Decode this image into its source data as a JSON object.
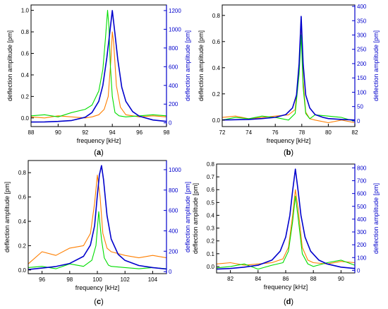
{
  "chart_data": [
    {
      "panel": "(a)",
      "type": "line",
      "xlabel": "frequency [kHz]",
      "ylabel_left": "deflection amplitude [pm]",
      "ylabel_right": "deflection amplitude [pm]",
      "xlim": [
        88,
        98
      ],
      "ylim_left": [
        -0.08,
        1.05
      ],
      "ylim_right": [
        -40,
        1260
      ],
      "xticks": [
        "88",
        "90",
        "92",
        "94",
        "96",
        "98"
      ],
      "yticks_left": [
        "0.0",
        "0.2",
        "0.4",
        "0.6",
        "0.8",
        "1.0"
      ],
      "yticks_right": [
        "0",
        "200",
        "400",
        "600",
        "800",
        "1000",
        "1200"
      ],
      "series": [
        {
          "axis": "left",
          "color": "#ff7f00",
          "x": [
            88,
            89,
            90,
            91,
            92,
            92.5,
            93,
            93.4,
            93.7,
            93.9,
            94.0,
            94.1,
            94.3,
            94.6,
            95,
            96,
            97,
            98
          ],
          "y": [
            0.01,
            0.0,
            0.02,
            0.01,
            0.0,
            0.01,
            0.03,
            0.08,
            0.2,
            0.55,
            0.8,
            0.7,
            0.3,
            0.1,
            0.03,
            0.01,
            0.02,
            0.01
          ]
        },
        {
          "axis": "left",
          "color": "#00dd00",
          "x": [
            88,
            89,
            90,
            91,
            92,
            92.5,
            93,
            93.3,
            93.5,
            93.65,
            93.75,
            93.85,
            94.0,
            94.2,
            94.5,
            95,
            96,
            97,
            98
          ],
          "y": [
            0.02,
            0.03,
            0.01,
            0.05,
            0.08,
            0.12,
            0.25,
            0.45,
            0.75,
            1.0,
            0.85,
            0.5,
            0.2,
            0.05,
            0.02,
            0.01,
            0.02,
            0.03,
            0.02
          ]
        },
        {
          "axis": "right",
          "color": "#0000cc",
          "x": [
            88,
            89,
            90,
            91,
            92,
            92.5,
            93,
            93.3,
            93.6,
            93.8,
            94.0,
            94.2,
            94.4,
            94.7,
            95,
            95.5,
            96,
            97,
            98
          ],
          "y": [
            8,
            10,
            15,
            25,
            60,
            110,
            230,
            400,
            700,
            950,
            1200,
            950,
            680,
            380,
            230,
            120,
            70,
            30,
            15
          ]
        }
      ]
    },
    {
      "panel": "(b)",
      "type": "line",
      "xlabel": "frequency [kHz]",
      "ylabel_left": "deflection amplitude [pm]",
      "ylabel_right": "deflection amplitude [pm]",
      "xlim": [
        72,
        82
      ],
      "ylim_left": [
        -0.05,
        0.88
      ],
      "ylim_right": [
        -20,
        405
      ],
      "xticks": [
        "72",
        "74",
        "76",
        "78",
        "80",
        "82"
      ],
      "yticks_left": [
        "0.0",
        "0.2",
        "0.4",
        "0.6",
        "0.8"
      ],
      "yticks_right": [
        "0",
        "50",
        "100",
        "150",
        "200",
        "250",
        "300",
        "350",
        "400"
      ],
      "series": [
        {
          "axis": "left",
          "color": "#ff7f00",
          "x": [
            72,
            73,
            74,
            75,
            76,
            77,
            77.5,
            77.8,
            77.95,
            78.1,
            78.3,
            78.6,
            79,
            80,
            81,
            82
          ],
          "y": [
            0.02,
            0.03,
            0.01,
            0.02,
            0.03,
            0.04,
            0.08,
            0.4,
            0.75,
            0.3,
            0.06,
            0.01,
            0.0,
            -0.02,
            0.0,
            -0.02
          ]
        },
        {
          "axis": "left",
          "color": "#00dd00",
          "x": [
            72,
            73,
            74,
            75,
            76,
            77,
            77.5,
            77.8,
            77.95,
            78.1,
            78.3,
            78.6,
            79,
            80,
            81,
            82
          ],
          "y": [
            0.0,
            0.02,
            0.01,
            0.03,
            0.02,
            0.0,
            0.05,
            0.35,
            0.65,
            0.25,
            0.05,
            0.01,
            0.04,
            0.03,
            0.02,
            -0.01
          ]
        },
        {
          "axis": "right",
          "color": "#0000cc",
          "x": [
            72,
            73,
            74,
            75,
            76,
            76.8,
            77.3,
            77.6,
            77.8,
            77.95,
            78.1,
            78.3,
            78.6,
            79,
            79.6,
            80,
            81,
            82
          ],
          "y": [
            3,
            4,
            5,
            8,
            12,
            22,
            45,
            90,
            200,
            365,
            200,
            90,
            45,
            22,
            12,
            8,
            5,
            3
          ]
        }
      ]
    },
    {
      "panel": "(c)",
      "type": "line",
      "xlabel": "frequency [kHz]",
      "ylabel_left": "deflection amplitude [pm]",
      "ylabel_right": "deflection amplitude [pm]",
      "xlim": [
        95,
        105
      ],
      "ylim_left": [
        -0.03,
        0.9
      ],
      "ylim_right": [
        -20,
        1090
      ],
      "xticks": [
        "96",
        "98",
        "100",
        "102",
        "104"
      ],
      "yticks_left": [
        "0.0",
        "0.2",
        "0.4",
        "0.6",
        "0.8"
      ],
      "yticks_right": [
        "0",
        "200",
        "400",
        "600",
        "800",
        "1000"
      ],
      "series": [
        {
          "axis": "left",
          "color": "#ff7f00",
          "x": [
            95,
            96,
            97,
            98,
            99,
            99.5,
            99.8,
            100.0,
            100.2,
            100.4,
            100.7,
            101,
            102,
            103,
            104,
            105
          ],
          "y": [
            0.05,
            0.15,
            0.12,
            0.18,
            0.2,
            0.3,
            0.55,
            0.78,
            0.6,
            0.3,
            0.18,
            0.15,
            0.12,
            0.1,
            0.12,
            0.1
          ]
        },
        {
          "axis": "left",
          "color": "#00dd00",
          "x": [
            95,
            96,
            97,
            98,
            99,
            99.6,
            99.9,
            100.1,
            100.3,
            100.5,
            100.8,
            101,
            102,
            103,
            104,
            105
          ],
          "y": [
            0.02,
            0.03,
            0.01,
            0.05,
            0.03,
            0.08,
            0.2,
            0.48,
            0.25,
            0.1,
            0.04,
            0.03,
            0.02,
            0.01,
            0.02,
            0.01
          ]
        },
        {
          "axis": "right",
          "color": "#0000cc",
          "x": [
            95,
            96,
            97,
            98,
            99,
            99.5,
            99.8,
            100.0,
            100.15,
            100.3,
            100.45,
            100.7,
            101,
            101.5,
            102,
            103,
            104,
            105
          ],
          "y": [
            20,
            35,
            50,
            80,
            150,
            260,
            450,
            750,
            950,
            1040,
            900,
            550,
            320,
            170,
            110,
            60,
            40,
            25
          ]
        }
      ]
    },
    {
      "panel": "(d)",
      "type": "line",
      "xlabel": "frequency [kHz]",
      "ylabel_left": "deflection amplitude [pm]",
      "ylabel_right": "deflection amplitude [pm]",
      "xlim": [
        81,
        91
      ],
      "ylim_left": [
        -0.05,
        0.8
      ],
      "ylim_right": [
        -20,
        830
      ],
      "xticks": [
        "82",
        "84",
        "86",
        "88",
        "90"
      ],
      "yticks_left": [
        "0.0",
        "0.1",
        "0.2",
        "0.3",
        "0.4",
        "0.5",
        "0.6",
        "0.7",
        "0.8"
      ],
      "yticks_right": [
        "0",
        "100",
        "200",
        "300",
        "400",
        "500",
        "600",
        "700",
        "800"
      ],
      "series": [
        {
          "axis": "left",
          "color": "#ff7f00",
          "x": [
            81,
            82,
            83,
            84,
            85,
            85.8,
            86.2,
            86.5,
            86.7,
            86.9,
            87.2,
            87.6,
            88,
            89,
            90,
            91
          ],
          "y": [
            0.02,
            0.03,
            0.01,
            0.02,
            0.03,
            0.06,
            0.15,
            0.4,
            0.6,
            0.45,
            0.15,
            0.05,
            0.03,
            0.02,
            0.04,
            0.03
          ]
        },
        {
          "axis": "left",
          "color": "#00dd00",
          "x": [
            81,
            82,
            83,
            84,
            85,
            85.8,
            86.2,
            86.5,
            86.7,
            86.9,
            87.2,
            87.6,
            88,
            89,
            90,
            91
          ],
          "y": [
            -0.01,
            0.0,
            0.02,
            -0.02,
            0.01,
            0.03,
            0.12,
            0.35,
            0.55,
            0.38,
            0.1,
            0.02,
            0.0,
            0.03,
            0.05,
            0.01
          ]
        },
        {
          "axis": "right",
          "color": "#0000cc",
          "x": [
            81,
            82,
            83,
            84,
            85,
            85.6,
            86.0,
            86.3,
            86.5,
            86.7,
            86.9,
            87.1,
            87.4,
            87.8,
            88.4,
            89,
            90,
            91
          ],
          "y": [
            10,
            15,
            25,
            40,
            80,
            150,
            260,
            430,
            620,
            790,
            620,
            430,
            260,
            150,
            80,
            50,
            25,
            15
          ]
        }
      ]
    }
  ]
}
